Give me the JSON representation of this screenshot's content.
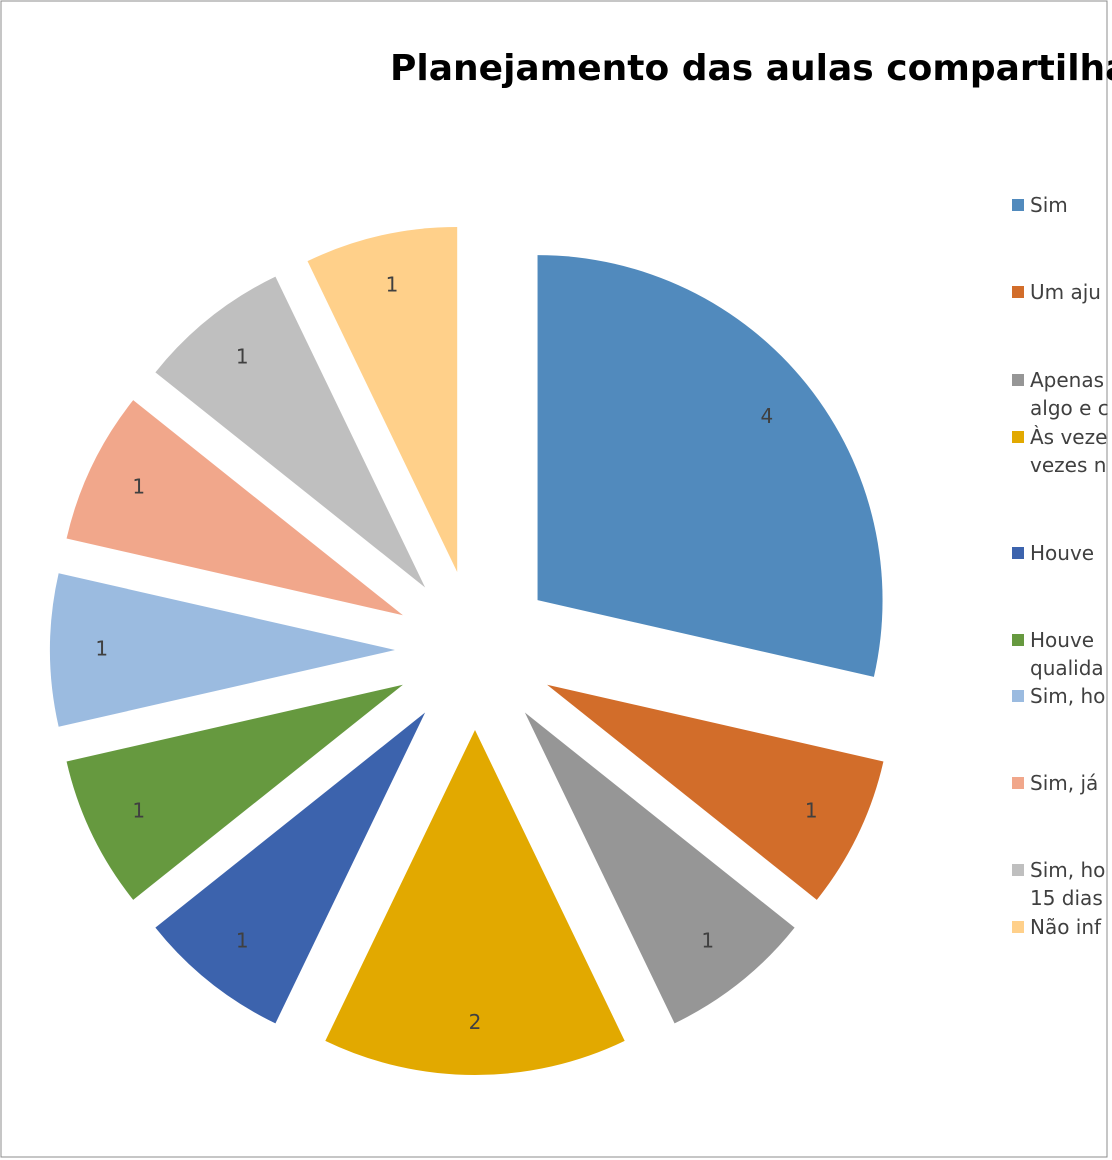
{
  "chart_data": {
    "type": "pie",
    "title": "Planejamento das aulas compartilha",
    "categories": [
      "Sim",
      "Um aju",
      "Apenas\nalgo e c",
      "Às veze\nvezes n",
      "Houve",
      "Houve\nqualida",
      "Sim, ho",
      "Sim, já",
      "Sim, ho\n15 dias",
      "Não inf"
    ],
    "values": [
      4,
      1,
      1,
      2,
      1,
      1,
      1,
      1,
      1,
      1
    ],
    "colors": [
      "#518abd",
      "#d26d2a",
      "#969696",
      "#e2a900",
      "#3c63ad",
      "#66993f",
      "#9bbbe0",
      "#f1a78b",
      "#bfbfbf",
      "#ffd08a"
    ],
    "legend": "right"
  }
}
